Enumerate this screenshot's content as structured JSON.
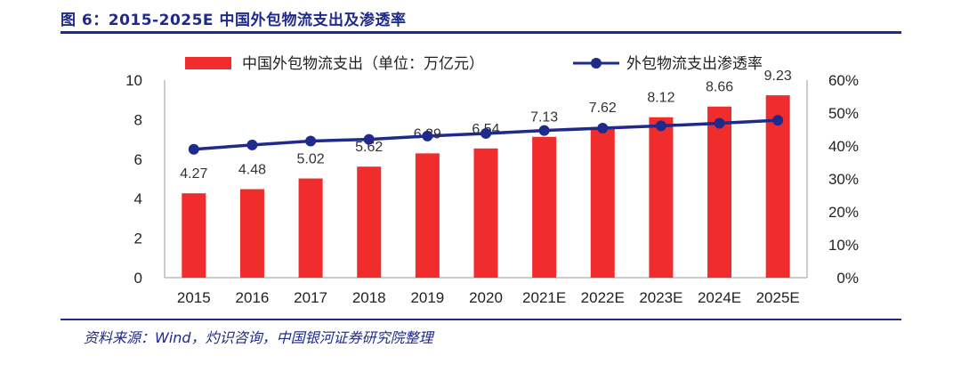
{
  "figure": {
    "title": "图 6：2015-2025E 中国外包物流支出及渗透率",
    "source": "资料来源：Wind，灼识咨询，中国银河证券研究院整理"
  },
  "colors": {
    "bar": "#f02c2c",
    "line": "#1f2a8a",
    "title": "#1f2a8a"
  },
  "chart_data": {
    "type": "bar",
    "title": "",
    "categories": [
      "2015",
      "2016",
      "2017",
      "2018",
      "2019",
      "2020",
      "2021E",
      "2022E",
      "2023E",
      "2024E",
      "2025E"
    ],
    "series": [
      {
        "name": "中国外包物流支出（单位：万亿元）",
        "type": "bar",
        "axis": "left",
        "values": [
          4.27,
          4.48,
          5.02,
          5.62,
          6.29,
          6.54,
          7.13,
          7.62,
          8.12,
          8.66,
          9.23
        ],
        "labels": [
          "4.27",
          "4.48",
          "5.02",
          "5.62",
          "6.29",
          "6.54",
          "7.13",
          "7.62",
          "8.12",
          "8.66",
          "9.23"
        ]
      },
      {
        "name": "外包物流支出渗透率",
        "type": "line",
        "axis": "right",
        "values": [
          39.0,
          40.3,
          41.5,
          42.0,
          43.0,
          43.8,
          44.7,
          45.4,
          46.1,
          46.9,
          47.8
        ]
      }
    ],
    "y_left": {
      "min": 0,
      "max": 10,
      "ticks": [
        "0",
        "2",
        "4",
        "6",
        "8",
        "10"
      ]
    },
    "y_right": {
      "min": 0,
      "max": 60,
      "ticks": [
        "0%",
        "10%",
        "20%",
        "30%",
        "40%",
        "50%",
        "60%"
      ]
    },
    "legend_position": "top",
    "grid": false
  }
}
